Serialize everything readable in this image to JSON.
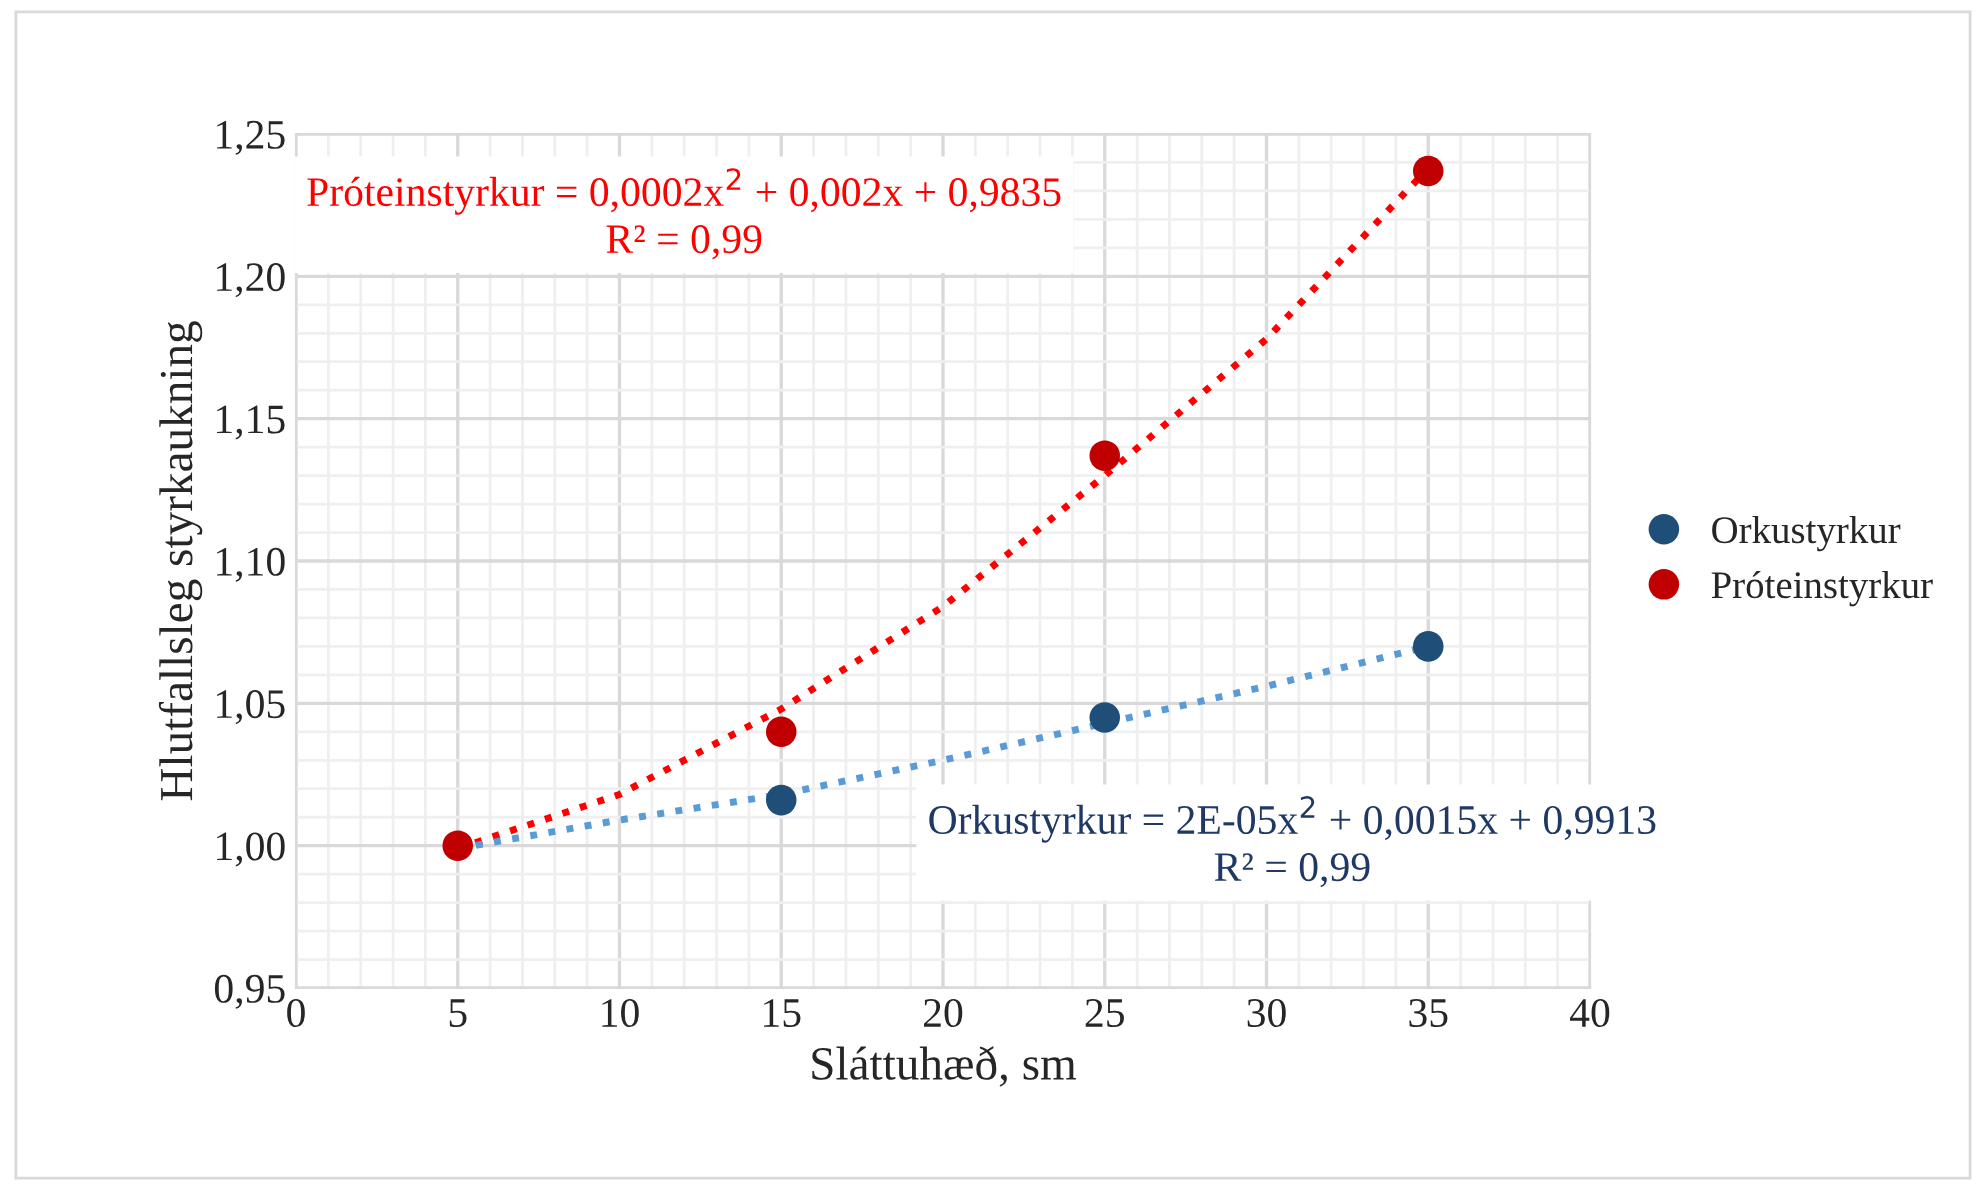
{
  "chart_data": {
    "type": "scatter",
    "xlabel": "Sláttuhæð, sm",
    "ylabel": "Hlutfallsleg styrkaukning",
    "series": [
      {
        "name": "Orkustyrkur",
        "marker": "circle",
        "color": "#1f4e79",
        "x": [
          15,
          25,
          35
        ],
        "values": [
          1.016,
          1.045,
          1.07
        ]
      },
      {
        "name": "Próteinstyrkur",
        "marker": "circle",
        "color": "#c00000",
        "x": [
          5,
          15,
          25,
          35
        ],
        "values": [
          1.0,
          1.04,
          1.137,
          1.237
        ]
      },
      {
        "type": "line",
        "color": "#ff0000",
        "line_style": "dotted",
        "x": [
          5,
          10,
          15,
          20,
          25,
          30,
          35
        ],
        "values": [
          0.999,
          1.018,
          1.048,
          1.084,
          1.13,
          1.178,
          1.238
        ]
      },
      {
        "type": "line",
        "color": "#5b9bd5",
        "line_style": "dotted",
        "x": [
          5,
          10,
          15,
          20,
          25,
          30,
          35
        ],
        "values": [
          0.999,
          1.009,
          1.018,
          1.03,
          1.043,
          1.056,
          1.07
        ]
      }
    ],
    "annotations": [
      "Próteinstyrkur = 0,0002x$^{2}$ + 0,002x + 0,9835\nR² = 0,99",
      "Orkustyrkur = 2E-05x$^{2}$ + 0,0015x + 0,9913\nR² = 0,99"
    ],
    "xlim": [
      0,
      40
    ],
    "xticks": [
      0,
      5,
      10,
      15,
      20,
      25,
      30,
      35,
      40
    ],
    "ylim": [
      0.95,
      1.25
    ],
    "yticks": [
      {
        "value": 0.95,
        "label": "0,95"
      },
      {
        "value": 1.0,
        "label": "1,00"
      },
      {
        "value": 1.05,
        "label": "1,05"
      },
      {
        "value": 1.1,
        "label": "1,10"
      },
      {
        "value": 1.15,
        "label": "1,15"
      },
      {
        "value": 1.2,
        "label": "1,20"
      },
      {
        "value": 1.25,
        "label": "1,25"
      }
    ],
    "grid": true,
    "legend": "right"
  }
}
